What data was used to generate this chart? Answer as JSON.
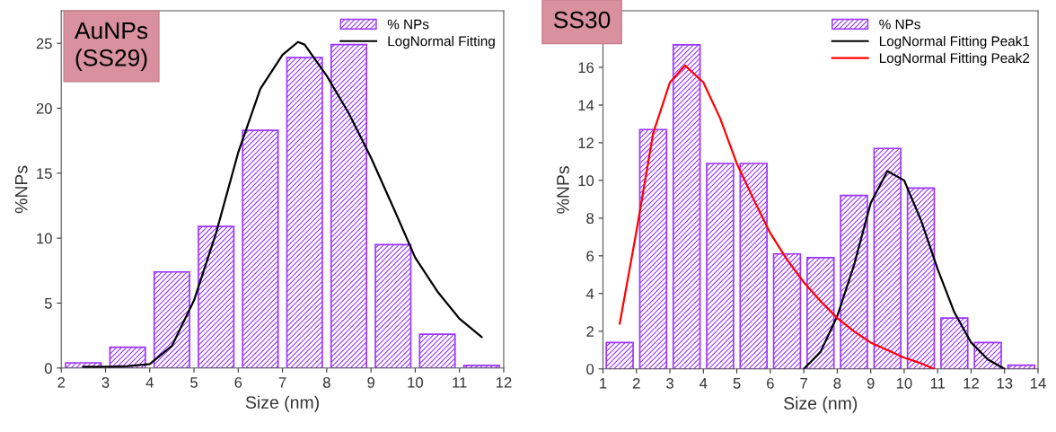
{
  "chart_data": [
    {
      "type": "histogram",
      "xlabel": "Size (nm)",
      "ylabel": "%NPs",
      "xlim": [
        2,
        12
      ],
      "xticks": [
        2,
        3,
        4,
        5,
        6,
        7,
        8,
        9,
        10,
        11,
        12
      ],
      "ylim": [
        0,
        27.5
      ],
      "yticks": [
        0,
        5,
        10,
        15,
        20,
        25
      ],
      "legend": "top right",
      "annotations": [
        "AuNPs\n(SS29)"
      ],
      "series": [
        {
          "name": "% NPs",
          "color": "#9933ff",
          "bins": [
            2,
            3,
            4,
            5,
            6,
            7,
            8,
            9,
            10,
            11,
            12
          ],
          "values": [
            0.4,
            1.6,
            7.4,
            10.9,
            18.3,
            23.9,
            24.9,
            9.5,
            2.6,
            0.2
          ]
        },
        {
          "type": "line",
          "name": "LogNormal Fitting",
          "color": "#000000",
          "x": [
            2.5,
            3,
            3.5,
            4,
            4.5,
            5,
            5.5,
            6,
            6.5,
            7,
            7.35,
            7.5,
            8,
            8.5,
            9,
            9.5,
            10,
            10.5,
            11,
            11.5
          ],
          "values": [
            0.1,
            0.1,
            0.15,
            0.3,
            1.7,
            5.2,
            10.4,
            16.6,
            21.5,
            24.1,
            25.1,
            24.9,
            22.5,
            19.6,
            16.2,
            12.4,
            8.5,
            5.9,
            3.8,
            2.4
          ]
        }
      ]
    },
    {
      "type": "histogram",
      "xlabel": "Size (nm)",
      "ylabel": "%NPs",
      "xlim": [
        1,
        14
      ],
      "xticks": [
        1,
        2,
        3,
        4,
        5,
        6,
        7,
        8,
        9,
        10,
        11,
        12,
        13,
        14
      ],
      "ylim": [
        0,
        19
      ],
      "yticks": [
        0,
        2,
        4,
        6,
        8,
        10,
        12,
        14,
        16
      ],
      "legend": "top right",
      "annotations": [
        "SS30"
      ],
      "series": [
        {
          "name": "% NPs",
          "color": "#9933ff",
          "bins": [
            1,
            2,
            3,
            4,
            5,
            6,
            7,
            8,
            9,
            10,
            11,
            12,
            13,
            14
          ],
          "values": [
            1.4,
            12.7,
            17.2,
            10.9,
            10.9,
            6.1,
            5.9,
            9.2,
            11.7,
            9.6,
            2.7,
            1.4,
            0.2
          ]
        },
        {
          "type": "line",
          "name": "LogNormal Fitting Peak1",
          "color": "#000000",
          "x": [
            7,
            7.5,
            8,
            8.5,
            9,
            9.5,
            10,
            10.5,
            11,
            11.5,
            12,
            12.5,
            13
          ],
          "values": [
            0,
            0.9,
            2.8,
            5.5,
            8.8,
            10.5,
            10.0,
            7.9,
            5.3,
            3.0,
            1.4,
            0.5,
            0
          ]
        },
        {
          "type": "line",
          "name": "LogNormal Fitting Peak2",
          "color": "#ff0000",
          "x": [
            1.5,
            2,
            2.5,
            3,
            3.45,
            4,
            4.5,
            5,
            5.5,
            6,
            6.5,
            7,
            7.5,
            8,
            8.5,
            9,
            9.5,
            10,
            10.5,
            10.9
          ],
          "values": [
            2.4,
            7.3,
            12.5,
            15.2,
            16.1,
            15.2,
            13.3,
            10.9,
            9.0,
            7.2,
            5.8,
            4.6,
            3.6,
            2.7,
            2.0,
            1.4,
            1.0,
            0.6,
            0.3,
            0
          ]
        }
      ]
    }
  ]
}
